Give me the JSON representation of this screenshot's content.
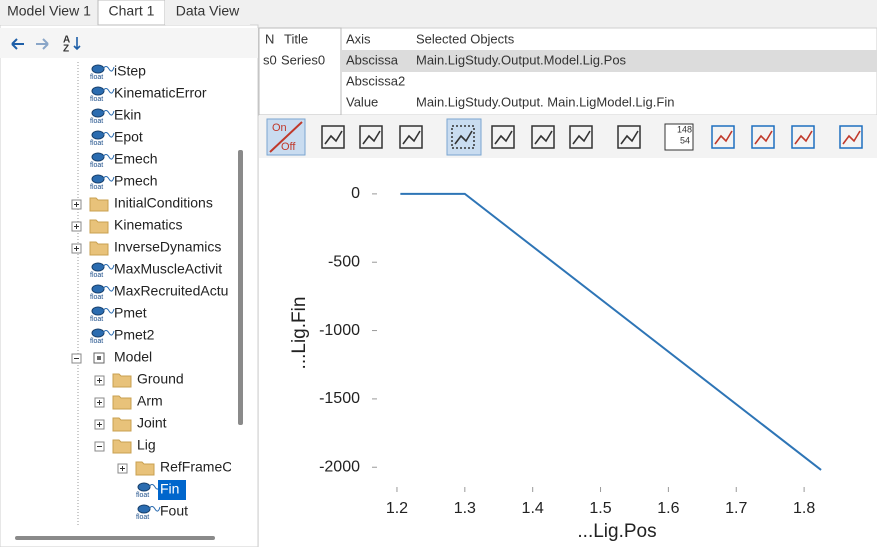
{
  "tabs": [
    "Model View 1",
    "Chart 1",
    "Data View"
  ],
  "active_tab": 1,
  "tree": {
    "icon_text": "float",
    "items": [
      {
        "label": "iStep",
        "kind": "float",
        "depth": 0
      },
      {
        "label": "KinematicError",
        "kind": "float",
        "depth": 0
      },
      {
        "label": "Ekin",
        "kind": "float",
        "depth": 0
      },
      {
        "label": "Epot",
        "kind": "float",
        "depth": 0
      },
      {
        "label": "Emech",
        "kind": "float",
        "depth": 0
      },
      {
        "label": "Pmech",
        "kind": "float",
        "depth": 0
      },
      {
        "label": "InitialConditions",
        "kind": "folder",
        "depth": 0,
        "expanded": false
      },
      {
        "label": "Kinematics",
        "kind": "folder",
        "depth": 0,
        "expanded": false
      },
      {
        "label": "InverseDynamics",
        "kind": "folder",
        "depth": 0,
        "expanded": false
      },
      {
        "label": "MaxMuscleActivit",
        "kind": "float",
        "depth": 0
      },
      {
        "label": "MaxRecruitedActu",
        "kind": "float",
        "depth": 0
      },
      {
        "label": "Pmet",
        "kind": "float",
        "depth": 0
      },
      {
        "label": "Pmet2",
        "kind": "float",
        "depth": 0
      },
      {
        "label": "Model",
        "kind": "model",
        "depth": 0,
        "expanded": true
      },
      {
        "label": "Ground",
        "kind": "folder",
        "depth": 1,
        "expanded": false
      },
      {
        "label": "Arm",
        "kind": "folder",
        "depth": 1,
        "expanded": false
      },
      {
        "label": "Joint",
        "kind": "folder",
        "depth": 1,
        "expanded": false
      },
      {
        "label": "Lig",
        "kind": "folder",
        "depth": 1,
        "expanded": true
      },
      {
        "label": "RefFrameC",
        "kind": "folder",
        "depth": 2,
        "expanded": false
      },
      {
        "label": "Fin",
        "kind": "float",
        "depth": 2,
        "selected": true
      },
      {
        "label": "Fout",
        "kind": "float",
        "depth": 2
      }
    ]
  },
  "series_table": {
    "headers": [
      "N",
      "Title"
    ],
    "rows": [
      [
        "s0",
        "Series0"
      ]
    ]
  },
  "axis_table": {
    "headers": [
      "Axis",
      "Selected Objects"
    ],
    "rows": [
      [
        "Abscissa",
        "Main.LigStudy.Output.Model.Lig.Pos"
      ],
      [
        "Abscissa2"
      ],
      [
        "Value",
        "Main.LigStudy.Output. Main.LigModel.Lig.Fin"
      ]
    ]
  },
  "toolbar": {
    "onoff": [
      "On",
      "Off"
    ],
    "labels_icon": [
      "148",
      "54"
    ]
  },
  "chart_data": {
    "type": "line",
    "x_label": "...Lig.Pos",
    "y_label": "...Lig.Fin",
    "x": [
      1.205,
      1.3,
      1.825
    ],
    "values": [
      0,
      0,
      -2020
    ],
    "color": "#2e75b6",
    "xlim": [
      1.175,
      1.875
    ],
    "ylim": [
      -2130,
      65
    ],
    "xticks": [
      1.2,
      1.3,
      1.4,
      1.5,
      1.6,
      1.7,
      1.8
    ],
    "yticks": [
      0,
      -500,
      -1000,
      -1500,
      -2000
    ]
  }
}
